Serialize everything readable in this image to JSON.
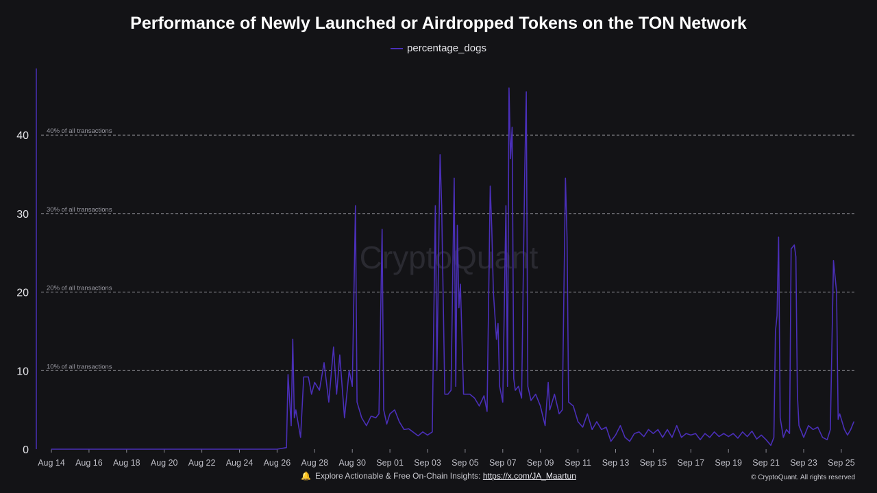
{
  "chart_data": {
    "type": "line",
    "title": "Performance of Newly Launched or Airdropped Tokens on the TON Network",
    "xlabel": "",
    "ylabel": "",
    "ylim": [
      0,
      48
    ],
    "yticks": [
      0,
      10,
      20,
      30,
      40
    ],
    "xticks": [
      "Aug 14",
      "Aug 16",
      "Aug 18",
      "Aug 20",
      "Aug 22",
      "Aug 24",
      "Aug 26",
      "Aug 28",
      "Aug 30",
      "Sep 01",
      "Sep 03",
      "Sep 05",
      "Sep 07",
      "Sep 09",
      "Sep 11",
      "Sep 13",
      "Sep 15",
      "Sep 17",
      "Sep 19",
      "Sep 21",
      "Sep 23",
      "Sep 25"
    ],
    "grid": "horizontal dashed",
    "legend_position": "top-center",
    "reference_lines": [
      {
        "y": 10,
        "label": "10% of all transactions"
      },
      {
        "y": 20,
        "label": "20% of all transactions"
      },
      {
        "y": 30,
        "label": "30% of all transactions"
      },
      {
        "y": 40,
        "label": "40% of all transactions"
      }
    ],
    "series": [
      {
        "name": "percentage_dogs",
        "color": "#4a2fb8",
        "points": [
          [
            "Aug 14",
            0
          ],
          [
            "Aug 20",
            0
          ],
          [
            "Aug 26",
            0
          ],
          [
            "Aug 26 12:00",
            0.2
          ],
          [
            "Aug 26 14:00",
            9.5
          ],
          [
            "Aug 26 18:00",
            3
          ],
          [
            "Aug 26 20:00",
            14
          ],
          [
            "Aug 26 22:00",
            4
          ],
          [
            "Aug 27 00:00",
            5
          ],
          [
            "Aug 27 06:00",
            1.5
          ],
          [
            "Aug 27 10:00",
            9.2
          ],
          [
            "Aug 27 16:00",
            9.2
          ],
          [
            "Aug 27 20:00",
            7
          ],
          [
            "Aug 28 00:00",
            8.5
          ],
          [
            "Aug 28 06:00",
            7.5
          ],
          [
            "Aug 28 12:00",
            11
          ],
          [
            "Aug 28 18:00",
            6
          ],
          [
            "Aug 29 00:00",
            13
          ],
          [
            "Aug 29 04:00",
            7
          ],
          [
            "Aug 29 08:00",
            12
          ],
          [
            "Aug 29 14:00",
            4
          ],
          [
            "Aug 29 20:00",
            10
          ],
          [
            "Aug 30 00:00",
            8
          ],
          [
            "Aug 30 04:00",
            31
          ],
          [
            "Aug 30 06:00",
            6
          ],
          [
            "Aug 30 12:00",
            4
          ],
          [
            "Aug 30 18:00",
            3
          ],
          [
            "Aug 31 00:00",
            4.2
          ],
          [
            "Aug 31 06:00",
            4
          ],
          [
            "Aug 31 10:00",
            4.5
          ],
          [
            "Aug 31 14:00",
            28
          ],
          [
            "Aug 31 16:00",
            5
          ],
          [
            "Aug 31 20:00",
            3.2
          ],
          [
            "Sep 01 00:00",
            4.5
          ],
          [
            "Sep 01 06:00",
            5
          ],
          [
            "Sep 01 12:00",
            3.5
          ],
          [
            "Sep 01 18:00",
            2.5
          ],
          [
            "Sep 02 00:00",
            2.6
          ],
          [
            "Sep 02 12:00",
            1.7
          ],
          [
            "Sep 02 18:00",
            2.2
          ],
          [
            "Sep 03 00:00",
            1.8
          ],
          [
            "Sep 03 06:00",
            2.2
          ],
          [
            "Sep 03 10:00",
            31
          ],
          [
            "Sep 03 12:00",
            10
          ],
          [
            "Sep 03 16:00",
            37.5
          ],
          [
            "Sep 03 18:00",
            31
          ],
          [
            "Sep 03 22:00",
            7
          ],
          [
            "Sep 04 02:00",
            7
          ],
          [
            "Sep 04 06:00",
            7.5
          ],
          [
            "Sep 04 10:00",
            34.5
          ],
          [
            "Sep 04 12:00",
            8
          ],
          [
            "Sep 04 14:00",
            28.5
          ],
          [
            "Sep 04 16:00",
            18
          ],
          [
            "Sep 04 18:00",
            21
          ],
          [
            "Sep 04 22:00",
            7
          ],
          [
            "Sep 05 06:00",
            7
          ],
          [
            "Sep 05 12:00",
            6.5
          ],
          [
            "Sep 05 18:00",
            5.5
          ],
          [
            "Sep 06 00:00",
            6.8
          ],
          [
            "Sep 06 04:00",
            4.8
          ],
          [
            "Sep 06 08:00",
            33.5
          ],
          [
            "Sep 06 10:00",
            28
          ],
          [
            "Sep 06 12:00",
            20
          ],
          [
            "Sep 06 16:00",
            14
          ],
          [
            "Sep 06 18:00",
            16
          ],
          [
            "Sep 06 20:00",
            8
          ],
          [
            "Sep 07 00:00",
            6
          ],
          [
            "Sep 07 04:00",
            31
          ],
          [
            "Sep 07 06:00",
            8
          ],
          [
            "Sep 07 08:00",
            46
          ],
          [
            "Sep 07 10:00",
            37
          ],
          [
            "Sep 07 12:00",
            41
          ],
          [
            "Sep 07 14:00",
            9
          ],
          [
            "Sep 07 16:00",
            7.5
          ],
          [
            "Sep 07 20:00",
            8
          ],
          [
            "Sep 08 00:00",
            6.5
          ],
          [
            "Sep 08 04:00",
            35
          ],
          [
            "Sep 08 06:00",
            45.5
          ],
          [
            "Sep 08 08:00",
            8
          ],
          [
            "Sep 08 12:00",
            6.2
          ],
          [
            "Sep 08 18:00",
            7
          ],
          [
            "Sep 09 00:00",
            5.5
          ],
          [
            "Sep 09 06:00",
            3
          ],
          [
            "Sep 09 10:00",
            8.5
          ],
          [
            "Sep 09 12:00",
            5
          ],
          [
            "Sep 09 18:00",
            7
          ],
          [
            "Sep 10 00:00",
            4.5
          ],
          [
            "Sep 10 04:00",
            5
          ],
          [
            "Sep 10 08:00",
            34.5
          ],
          [
            "Sep 10 10:00",
            27
          ],
          [
            "Sep 10 12:00",
            6
          ],
          [
            "Sep 10 18:00",
            5.5
          ],
          [
            "Sep 11 00:00",
            3.5
          ],
          [
            "Sep 11 06:00",
            2.8
          ],
          [
            "Sep 11 12:00",
            4.5
          ],
          [
            "Sep 11 18:00",
            2.5
          ],
          [
            "Sep 12 00:00",
            3.5
          ],
          [
            "Sep 12 06:00",
            2.5
          ],
          [
            "Sep 12 12:00",
            2.8
          ],
          [
            "Sep 12 18:00",
            1
          ],
          [
            "Sep 13 00:00",
            1.8
          ],
          [
            "Sep 13 06:00",
            3
          ],
          [
            "Sep 13 12:00",
            1.5
          ],
          [
            "Sep 13 18:00",
            1
          ],
          [
            "Sep 14 00:00",
            2
          ],
          [
            "Sep 14 06:00",
            2.2
          ],
          [
            "Sep 14 12:00",
            1.6
          ],
          [
            "Sep 14 18:00",
            2.5
          ],
          [
            "Sep 15 00:00",
            2
          ],
          [
            "Sep 15 06:00",
            2.5
          ],
          [
            "Sep 15 12:00",
            1.5
          ],
          [
            "Sep 15 18:00",
            2.5
          ],
          [
            "Sep 16 00:00",
            1.5
          ],
          [
            "Sep 16 06:00",
            3
          ],
          [
            "Sep 16 12:00",
            1.5
          ],
          [
            "Sep 16 18:00",
            2
          ],
          [
            "Sep 17 00:00",
            1.8
          ],
          [
            "Sep 17 06:00",
            2
          ],
          [
            "Sep 17 12:00",
            1.2
          ],
          [
            "Sep 17 18:00",
            2
          ],
          [
            "Sep 18 00:00",
            1.5
          ],
          [
            "Sep 18 06:00",
            2.2
          ],
          [
            "Sep 18 12:00",
            1.6
          ],
          [
            "Sep 18 18:00",
            2
          ],
          [
            "Sep 19 00:00",
            1.6
          ],
          [
            "Sep 19 06:00",
            2
          ],
          [
            "Sep 19 12:00",
            1.4
          ],
          [
            "Sep 19 18:00",
            2.2
          ],
          [
            "Sep 20 00:00",
            1.6
          ],
          [
            "Sep 20 06:00",
            2.3
          ],
          [
            "Sep 20 12:00",
            1.3
          ],
          [
            "Sep 20 18:00",
            1.8
          ],
          [
            "Sep 21 00:00",
            1.2
          ],
          [
            "Sep 21 06:00",
            0.5
          ],
          [
            "Sep 21 10:00",
            1.5
          ],
          [
            "Sep 21 12:00",
            15
          ],
          [
            "Sep 21 14:00",
            17
          ],
          [
            "Sep 21 16:00",
            27
          ],
          [
            "Sep 21 18:00",
            4
          ],
          [
            "Sep 21 22:00",
            1.5
          ],
          [
            "Sep 22 02:00",
            2.5
          ],
          [
            "Sep 22 06:00",
            2
          ],
          [
            "Sep 22 08:00",
            25.5
          ],
          [
            "Sep 22 12:00",
            26
          ],
          [
            "Sep 22 14:00",
            24.5
          ],
          [
            "Sep 22 16:00",
            7
          ],
          [
            "Sep 22 18:00",
            3
          ],
          [
            "Sep 23 00:00",
            1.5
          ],
          [
            "Sep 23 06:00",
            3
          ],
          [
            "Sep 23 12:00",
            2.5
          ],
          [
            "Sep 23 18:00",
            2.8
          ],
          [
            "Sep 24 00:00",
            1.5
          ],
          [
            "Sep 24 06:00",
            1.2
          ],
          [
            "Sep 24 10:00",
            2.5
          ],
          [
            "Sep 24 14:00",
            24
          ],
          [
            "Sep 24 18:00",
            20
          ],
          [
            "Sep 24 20:00",
            3.8
          ],
          [
            "Sep 24 22:00",
            4.5
          ],
          [
            "Sep 25 04:00",
            2.5
          ],
          [
            "Sep 25 08:00",
            1.8
          ],
          [
            "Sep 25 12:00",
            2.5
          ],
          [
            "Sep 25 16:00",
            3.5
          ]
        ]
      }
    ]
  },
  "watermark": "CryptoQuant",
  "footer": {
    "text": "Explore Actionable & Free On-Chain Insights:",
    "link": "https://x.com/JA_Maartun",
    "copyright": "© CryptoQuant. All rights reserved"
  },
  "colors": {
    "background": "#131316",
    "line": "#4a2fb8",
    "grid": "#bfbfc6"
  }
}
